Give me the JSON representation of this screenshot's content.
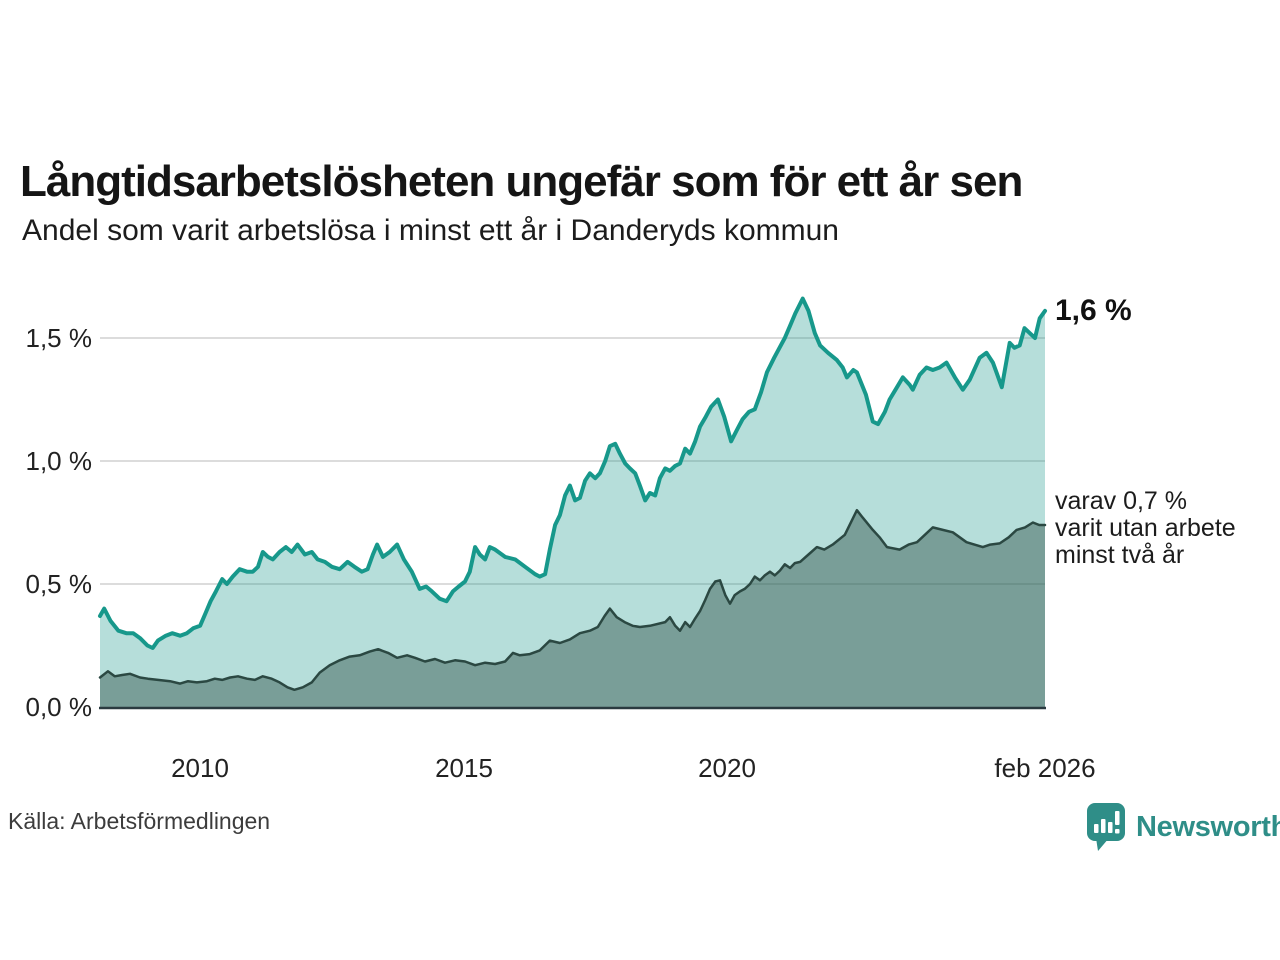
{
  "header": {
    "title": "Långtidsarbetslösheten ungefär som för ett år sen",
    "subtitle": "Andel som varit arbetslösa i minst ett år i Danderyds kommun"
  },
  "annotations": {
    "latest_total": "1,6 %",
    "secondary_lines": [
      "varav 0,7 %",
      "varit utan arbete",
      "minst två år"
    ]
  },
  "footer": {
    "source": "Källa: Arbetsförmedlingen",
    "logo_text": "Newsworthy"
  },
  "colors": {
    "accent_teal": "#17988b",
    "light_fill": "rgba(27,152,139,0.32)",
    "dark_line": "#2b4842",
    "dark_fill": "rgba(47,79,71,0.45)",
    "grid": "#dcdcdc",
    "axis": "#2a3a40",
    "logo_teal": "#2f8e88",
    "text": "#1c1c1c"
  },
  "chart_data": {
    "type": "area",
    "title": "Långtidsarbetslösheten ungefär som för ett år sen",
    "subtitle": "Andel som varit arbetslösa i minst ett år i Danderyds kommun",
    "unit": "%",
    "grid": true,
    "legend_position": "right-annotations",
    "x_range": [
      2008.1,
      2026.04
    ],
    "ylim": [
      0,
      1.7
    ],
    "x_axis": {
      "ticks": [
        {
          "label": "2010",
          "year": 2010
        },
        {
          "label": "2015",
          "year": 2015
        },
        {
          "label": "2020",
          "year": 2020
        },
        {
          "label": "feb 2026",
          "year": 2026.08
        }
      ]
    },
    "y_axis": {
      "ticks": [
        {
          "label": "1,5 %",
          "value": 1.5
        },
        {
          "label": "1,0 %",
          "value": 1.0
        },
        {
          "label": "0,5 %",
          "value": 0.5
        },
        {
          "label": "0,0 %",
          "value": 0.0
        }
      ]
    },
    "series": [
      {
        "name": "Arbetslösa minst ett år",
        "latest_label": "1,6 %",
        "latest_value": 1.6,
        "line_color": "#17988b",
        "fill_color": "rgba(27,152,139,0.32)",
        "line_width": 4,
        "points": [
          [
            2008.1,
            0.37
          ],
          [
            2008.18,
            0.4
          ],
          [
            2008.3,
            0.35
          ],
          [
            2008.45,
            0.31
          ],
          [
            2008.6,
            0.3
          ],
          [
            2008.73,
            0.3
          ],
          [
            2008.86,
            0.28
          ],
          [
            2009.0,
            0.25
          ],
          [
            2009.1,
            0.24
          ],
          [
            2009.2,
            0.27
          ],
          [
            2009.35,
            0.29
          ],
          [
            2009.47,
            0.3
          ],
          [
            2009.62,
            0.29
          ],
          [
            2009.75,
            0.3
          ],
          [
            2009.87,
            0.32
          ],
          [
            2010.0,
            0.33
          ],
          [
            2010.1,
            0.38
          ],
          [
            2010.2,
            0.43
          ],
          [
            2010.3,
            0.47
          ],
          [
            2010.42,
            0.52
          ],
          [
            2010.51,
            0.5
          ],
          [
            2010.62,
            0.53
          ],
          [
            2010.75,
            0.56
          ],
          [
            2010.89,
            0.55
          ],
          [
            2011.0,
            0.55
          ],
          [
            2011.1,
            0.57
          ],
          [
            2011.19,
            0.63
          ],
          [
            2011.29,
            0.61
          ],
          [
            2011.38,
            0.6
          ],
          [
            2011.51,
            0.63
          ],
          [
            2011.63,
            0.65
          ],
          [
            2011.74,
            0.63
          ],
          [
            2011.85,
            0.66
          ],
          [
            2011.99,
            0.62
          ],
          [
            2012.12,
            0.63
          ],
          [
            2012.23,
            0.6
          ],
          [
            2012.37,
            0.59
          ],
          [
            2012.5,
            0.57
          ],
          [
            2012.65,
            0.56
          ],
          [
            2012.8,
            0.59
          ],
          [
            2012.93,
            0.57
          ],
          [
            2013.07,
            0.55
          ],
          [
            2013.18,
            0.56
          ],
          [
            2013.28,
            0.62
          ],
          [
            2013.36,
            0.66
          ],
          [
            2013.47,
            0.61
          ],
          [
            2013.6,
            0.63
          ],
          [
            2013.74,
            0.66
          ],
          [
            2013.87,
            0.6
          ],
          [
            2014.02,
            0.55
          ],
          [
            2014.17,
            0.48
          ],
          [
            2014.29,
            0.49
          ],
          [
            2014.4,
            0.47
          ],
          [
            2014.55,
            0.44
          ],
          [
            2014.68,
            0.43
          ],
          [
            2014.8,
            0.47
          ],
          [
            2014.91,
            0.49
          ],
          [
            2015.03,
            0.51
          ],
          [
            2015.12,
            0.55
          ],
          [
            2015.22,
            0.65
          ],
          [
            2015.31,
            0.62
          ],
          [
            2015.41,
            0.6
          ],
          [
            2015.5,
            0.65
          ],
          [
            2015.6,
            0.64
          ],
          [
            2015.79,
            0.61
          ],
          [
            2015.98,
            0.6
          ],
          [
            2016.17,
            0.57
          ],
          [
            2016.36,
            0.54
          ],
          [
            2016.45,
            0.53
          ],
          [
            2016.55,
            0.54
          ],
          [
            2016.64,
            0.64
          ],
          [
            2016.74,
            0.74
          ],
          [
            2016.83,
            0.78
          ],
          [
            2016.93,
            0.86
          ],
          [
            2017.02,
            0.9
          ],
          [
            2017.12,
            0.84
          ],
          [
            2017.21,
            0.85
          ],
          [
            2017.31,
            0.92
          ],
          [
            2017.4,
            0.95
          ],
          [
            2017.5,
            0.93
          ],
          [
            2017.59,
            0.95
          ],
          [
            2017.69,
            1.0
          ],
          [
            2017.78,
            1.06
          ],
          [
            2017.88,
            1.07
          ],
          [
            2017.97,
            1.03
          ],
          [
            2018.07,
            0.99
          ],
          [
            2018.16,
            0.97
          ],
          [
            2018.26,
            0.95
          ],
          [
            2018.35,
            0.9
          ],
          [
            2018.45,
            0.84
          ],
          [
            2018.54,
            0.87
          ],
          [
            2018.64,
            0.86
          ],
          [
            2018.73,
            0.93
          ],
          [
            2018.83,
            0.97
          ],
          [
            2018.92,
            0.96
          ],
          [
            2019.02,
            0.98
          ],
          [
            2019.11,
            0.99
          ],
          [
            2019.21,
            1.05
          ],
          [
            2019.3,
            1.03
          ],
          [
            2019.4,
            1.08
          ],
          [
            2019.49,
            1.14
          ],
          [
            2019.6,
            1.18
          ],
          [
            2019.7,
            1.22
          ],
          [
            2019.83,
            1.25
          ],
          [
            2019.95,
            1.18
          ],
          [
            2020.08,
            1.08
          ],
          [
            2020.2,
            1.13
          ],
          [
            2020.3,
            1.17
          ],
          [
            2020.42,
            1.2
          ],
          [
            2020.53,
            1.21
          ],
          [
            2020.65,
            1.28
          ],
          [
            2020.76,
            1.36
          ],
          [
            2020.9,
            1.42
          ],
          [
            2021.0,
            1.46
          ],
          [
            2021.1,
            1.5
          ],
          [
            2021.2,
            1.55
          ],
          [
            2021.3,
            1.6
          ],
          [
            2021.44,
            1.66
          ],
          [
            2021.55,
            1.61
          ],
          [
            2021.67,
            1.52
          ],
          [
            2021.77,
            1.47
          ],
          [
            2021.92,
            1.44
          ],
          [
            2022.09,
            1.41
          ],
          [
            2022.2,
            1.38
          ],
          [
            2022.28,
            1.34
          ],
          [
            2022.4,
            1.37
          ],
          [
            2022.47,
            1.36
          ],
          [
            2022.64,
            1.27
          ],
          [
            2022.77,
            1.16
          ],
          [
            2022.87,
            1.15
          ],
          [
            2023.0,
            1.2
          ],
          [
            2023.09,
            1.25
          ],
          [
            2023.23,
            1.3
          ],
          [
            2023.34,
            1.34
          ],
          [
            2023.47,
            1.31
          ],
          [
            2023.53,
            1.29
          ],
          [
            2023.66,
            1.35
          ],
          [
            2023.79,
            1.38
          ],
          [
            2023.91,
            1.37
          ],
          [
            2024.04,
            1.38
          ],
          [
            2024.17,
            1.4
          ],
          [
            2024.33,
            1.34
          ],
          [
            2024.48,
            1.29
          ],
          [
            2024.61,
            1.33
          ],
          [
            2024.8,
            1.42
          ],
          [
            2024.93,
            1.44
          ],
          [
            2025.05,
            1.4
          ],
          [
            2025.12,
            1.36
          ],
          [
            2025.22,
            1.3
          ],
          [
            2025.37,
            1.48
          ],
          [
            2025.46,
            1.46
          ],
          [
            2025.56,
            1.47
          ],
          [
            2025.65,
            1.54
          ],
          [
            2025.75,
            1.52
          ],
          [
            2025.85,
            1.5
          ],
          [
            2025.94,
            1.58
          ],
          [
            2026.04,
            1.61
          ]
        ]
      },
      {
        "name": "Varit utan arbete minst två år",
        "latest_label": "varav 0,7 %",
        "latest_value": 0.7,
        "line_color": "#2b4842",
        "fill_color": "rgba(47,79,71,0.45)",
        "line_width": 2.5,
        "points": [
          [
            2008.1,
            0.12
          ],
          [
            2008.25,
            0.145
          ],
          [
            2008.38,
            0.125
          ],
          [
            2008.52,
            0.13
          ],
          [
            2008.67,
            0.135
          ],
          [
            2008.86,
            0.12
          ],
          [
            2009.01,
            0.115
          ],
          [
            2009.2,
            0.11
          ],
          [
            2009.43,
            0.105
          ],
          [
            2009.62,
            0.095
          ],
          [
            2009.77,
            0.105
          ],
          [
            2009.94,
            0.1
          ],
          [
            2010.13,
            0.105
          ],
          [
            2010.28,
            0.115
          ],
          [
            2010.42,
            0.11
          ],
          [
            2010.57,
            0.12
          ],
          [
            2010.72,
            0.125
          ],
          [
            2010.89,
            0.115
          ],
          [
            2011.04,
            0.11
          ],
          [
            2011.19,
            0.125
          ],
          [
            2011.36,
            0.115
          ],
          [
            2011.51,
            0.1
          ],
          [
            2011.66,
            0.08
          ],
          [
            2011.79,
            0.07
          ],
          [
            2011.95,
            0.08
          ],
          [
            2012.12,
            0.1
          ],
          [
            2012.27,
            0.14
          ],
          [
            2012.46,
            0.17
          ],
          [
            2012.65,
            0.19
          ],
          [
            2012.84,
            0.205
          ],
          [
            2013.03,
            0.21
          ],
          [
            2013.22,
            0.225
          ],
          [
            2013.38,
            0.235
          ],
          [
            2013.57,
            0.22
          ],
          [
            2013.74,
            0.2
          ],
          [
            2013.93,
            0.21
          ],
          [
            2014.08,
            0.2
          ],
          [
            2014.27,
            0.185
          ],
          [
            2014.46,
            0.195
          ],
          [
            2014.65,
            0.18
          ],
          [
            2014.84,
            0.19
          ],
          [
            2015.03,
            0.185
          ],
          [
            2015.22,
            0.17
          ],
          [
            2015.41,
            0.18
          ],
          [
            2015.6,
            0.175
          ],
          [
            2015.79,
            0.185
          ],
          [
            2015.94,
            0.22
          ],
          [
            2016.07,
            0.21
          ],
          [
            2016.26,
            0.215
          ],
          [
            2016.45,
            0.23
          ],
          [
            2016.64,
            0.27
          ],
          [
            2016.83,
            0.26
          ],
          [
            2017.02,
            0.275
          ],
          [
            2017.21,
            0.3
          ],
          [
            2017.4,
            0.31
          ],
          [
            2017.55,
            0.325
          ],
          [
            2017.68,
            0.37
          ],
          [
            2017.78,
            0.4
          ],
          [
            2017.91,
            0.365
          ],
          [
            2018.06,
            0.345
          ],
          [
            2018.21,
            0.33
          ],
          [
            2018.35,
            0.325
          ],
          [
            2018.54,
            0.33
          ],
          [
            2018.83,
            0.345
          ],
          [
            2018.92,
            0.365
          ],
          [
            2019.02,
            0.33
          ],
          [
            2019.11,
            0.31
          ],
          [
            2019.21,
            0.345
          ],
          [
            2019.3,
            0.325
          ],
          [
            2019.4,
            0.36
          ],
          [
            2019.49,
            0.39
          ],
          [
            2019.59,
            0.435
          ],
          [
            2019.68,
            0.48
          ],
          [
            2019.78,
            0.51
          ],
          [
            2019.87,
            0.515
          ],
          [
            2019.97,
            0.455
          ],
          [
            2020.06,
            0.42
          ],
          [
            2020.15,
            0.455
          ],
          [
            2020.25,
            0.47
          ],
          [
            2020.34,
            0.48
          ],
          [
            2020.44,
            0.5
          ],
          [
            2020.53,
            0.53
          ],
          [
            2020.63,
            0.515
          ],
          [
            2020.72,
            0.535
          ],
          [
            2020.82,
            0.55
          ],
          [
            2020.91,
            0.535
          ],
          [
            2021.01,
            0.555
          ],
          [
            2021.1,
            0.58
          ],
          [
            2021.2,
            0.565
          ],
          [
            2021.29,
            0.585
          ],
          [
            2021.39,
            0.59
          ],
          [
            2021.55,
            0.62
          ],
          [
            2021.71,
            0.65
          ],
          [
            2021.85,
            0.64
          ],
          [
            2022.01,
            0.66
          ],
          [
            2022.24,
            0.7
          ],
          [
            2022.47,
            0.8
          ],
          [
            2022.58,
            0.77
          ],
          [
            2022.77,
            0.72
          ],
          [
            2022.9,
            0.69
          ],
          [
            2023.04,
            0.65
          ],
          [
            2023.28,
            0.64
          ],
          [
            2023.45,
            0.66
          ],
          [
            2023.61,
            0.67
          ],
          [
            2023.76,
            0.7
          ],
          [
            2023.91,
            0.73
          ],
          [
            2024.1,
            0.72
          ],
          [
            2024.29,
            0.71
          ],
          [
            2024.55,
            0.67
          ],
          [
            2024.7,
            0.66
          ],
          [
            2024.86,
            0.65
          ],
          [
            2025.0,
            0.66
          ],
          [
            2025.18,
            0.665
          ],
          [
            2025.35,
            0.69
          ],
          [
            2025.5,
            0.72
          ],
          [
            2025.66,
            0.73
          ],
          [
            2025.81,
            0.75
          ],
          [
            2025.93,
            0.74
          ],
          [
            2026.04,
            0.74
          ]
        ]
      }
    ]
  }
}
